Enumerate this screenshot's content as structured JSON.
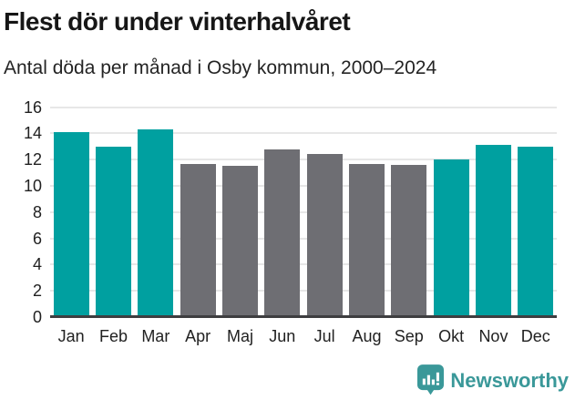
{
  "chart_data": {
    "type": "bar",
    "title": "Flest dör under vinterhalvåret",
    "subtitle": "Antal döda per månad i Osby kommun, 2000–2024",
    "categories": [
      "Jan",
      "Feb",
      "Mar",
      "Apr",
      "Maj",
      "Jun",
      "Jul",
      "Aug",
      "Sep",
      "Okt",
      "Nov",
      "Dec"
    ],
    "values": [
      14.1,
      13.0,
      14.3,
      11.7,
      11.5,
      12.8,
      12.4,
      11.7,
      11.6,
      12.0,
      13.1,
      13.0
    ],
    "highlighted_months": [
      true,
      true,
      true,
      false,
      false,
      false,
      false,
      false,
      false,
      true,
      true,
      true
    ],
    "xlabel": "",
    "ylabel": "",
    "ylim": [
      0,
      16
    ],
    "yticks": [
      0,
      2,
      4,
      6,
      8,
      10,
      12,
      14,
      16
    ],
    "grid": "horizontal",
    "legend_position": "none",
    "colors": {
      "highlight": "#00a0a0",
      "base": "#6e6e73",
      "gridline": "#e7e7e7",
      "axis_line": "#3e3e40",
      "tick_text": "#212121"
    }
  },
  "footer": {
    "brand": "Newsworthy",
    "brand_color": "#3a9899",
    "logo_icon": "newsworthy-barchart-badge-icon"
  }
}
